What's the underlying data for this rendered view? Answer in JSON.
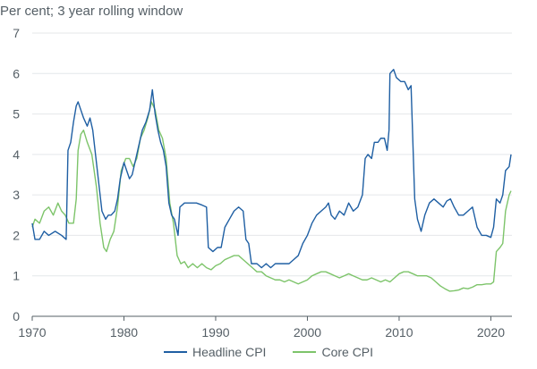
{
  "chart_data": {
    "type": "line",
    "ylabel": "Per cent; 3 year rolling window",
    "ylim": [
      0,
      7
    ],
    "xlim": [
      1970,
      2022.3
    ],
    "y_ticks": [
      "0",
      "1",
      "2",
      "3",
      "4",
      "5",
      "6",
      "7"
    ],
    "x_ticks": [
      "1970",
      "1980",
      "1990",
      "2000",
      "2010",
      "2020"
    ],
    "grid": true,
    "legend_position": "bottom",
    "series": [
      {
        "name": "Headline CPI",
        "color": "#1f5fa3",
        "points": [
          [
            1970.0,
            2.3
          ],
          [
            1970.3,
            1.9
          ],
          [
            1970.8,
            1.9
          ],
          [
            1971.3,
            2.1
          ],
          [
            1971.8,
            2.0
          ],
          [
            1972.5,
            2.1
          ],
          [
            1973.2,
            2.0
          ],
          [
            1973.7,
            1.9
          ],
          [
            1973.9,
            4.1
          ],
          [
            1974.2,
            4.3
          ],
          [
            1974.5,
            4.8
          ],
          [
            1974.8,
            5.2
          ],
          [
            1975.0,
            5.3
          ],
          [
            1975.3,
            5.1
          ],
          [
            1975.6,
            4.9
          ],
          [
            1976.0,
            4.7
          ],
          [
            1976.3,
            4.9
          ],
          [
            1976.6,
            4.6
          ],
          [
            1977.0,
            3.8
          ],
          [
            1977.3,
            3.2
          ],
          [
            1977.6,
            2.6
          ],
          [
            1978.0,
            2.4
          ],
          [
            1978.3,
            2.5
          ],
          [
            1978.6,
            2.5
          ],
          [
            1979.0,
            2.6
          ],
          [
            1979.3,
            2.9
          ],
          [
            1979.6,
            3.4
          ],
          [
            1980.0,
            3.8
          ],
          [
            1980.3,
            3.6
          ],
          [
            1980.6,
            3.4
          ],
          [
            1980.9,
            3.5
          ],
          [
            1981.2,
            3.8
          ],
          [
            1981.6,
            4.2
          ],
          [
            1982.0,
            4.6
          ],
          [
            1982.4,
            4.8
          ],
          [
            1982.8,
            5.1
          ],
          [
            1983.1,
            5.6
          ],
          [
            1983.4,
            5.0
          ],
          [
            1983.7,
            4.6
          ],
          [
            1984.0,
            4.3
          ],
          [
            1984.3,
            4.1
          ],
          [
            1984.6,
            3.7
          ],
          [
            1984.9,
            2.8
          ],
          [
            1985.2,
            2.5
          ],
          [
            1985.5,
            2.4
          ],
          [
            1985.9,
            2.0
          ],
          [
            1986.1,
            2.7
          ],
          [
            1986.6,
            2.8
          ],
          [
            1987.3,
            2.8
          ],
          [
            1987.9,
            2.8
          ],
          [
            1988.5,
            2.75
          ],
          [
            1989.0,
            2.7
          ],
          [
            1989.2,
            1.7
          ],
          [
            1989.7,
            1.6
          ],
          [
            1990.2,
            1.7
          ],
          [
            1990.6,
            1.7
          ],
          [
            1991.0,
            2.2
          ],
          [
            1991.5,
            2.4
          ],
          [
            1992.0,
            2.6
          ],
          [
            1992.5,
            2.7
          ],
          [
            1993.0,
            2.6
          ],
          [
            1993.3,
            1.9
          ],
          [
            1993.6,
            1.8
          ],
          [
            1993.9,
            1.3
          ],
          [
            1994.5,
            1.3
          ],
          [
            1995.0,
            1.2
          ],
          [
            1995.5,
            1.3
          ],
          [
            1996.0,
            1.2
          ],
          [
            1996.5,
            1.3
          ],
          [
            1997.0,
            1.3
          ],
          [
            1997.5,
            1.3
          ],
          [
            1998.0,
            1.3
          ],
          [
            1998.5,
            1.4
          ],
          [
            1999.0,
            1.5
          ],
          [
            1999.5,
            1.8
          ],
          [
            2000.0,
            2.0
          ],
          [
            2000.5,
            2.3
          ],
          [
            2001.0,
            2.5
          ],
          [
            2001.5,
            2.6
          ],
          [
            2002.0,
            2.7
          ],
          [
            2002.3,
            2.8
          ],
          [
            2002.6,
            2.5
          ],
          [
            2003.0,
            2.4
          ],
          [
            2003.5,
            2.6
          ],
          [
            2004.0,
            2.5
          ],
          [
            2004.5,
            2.8
          ],
          [
            2005.0,
            2.6
          ],
          [
            2005.5,
            2.7
          ],
          [
            2006.0,
            3.0
          ],
          [
            2006.3,
            3.9
          ],
          [
            2006.6,
            4.0
          ],
          [
            2007.0,
            3.9
          ],
          [
            2007.3,
            4.3
          ],
          [
            2007.7,
            4.3
          ],
          [
            2008.0,
            4.4
          ],
          [
            2008.4,
            4.4
          ],
          [
            2008.7,
            4.1
          ],
          [
            2008.9,
            4.6
          ],
          [
            2009.0,
            6.0
          ],
          [
            2009.4,
            6.1
          ],
          [
            2009.7,
            5.9
          ],
          [
            2010.2,
            5.8
          ],
          [
            2010.6,
            5.8
          ],
          [
            2011.0,
            5.6
          ],
          [
            2011.3,
            5.7
          ],
          [
            2011.7,
            2.9
          ],
          [
            2012.0,
            2.4
          ],
          [
            2012.4,
            2.1
          ],
          [
            2012.8,
            2.5
          ],
          [
            2013.3,
            2.8
          ],
          [
            2013.8,
            2.9
          ],
          [
            2014.3,
            2.8
          ],
          [
            2014.8,
            2.7
          ],
          [
            2015.2,
            2.85
          ],
          [
            2015.6,
            2.9
          ],
          [
            2016.0,
            2.7
          ],
          [
            2016.5,
            2.5
          ],
          [
            2017.0,
            2.5
          ],
          [
            2017.5,
            2.6
          ],
          [
            2018.0,
            2.7
          ],
          [
            2018.5,
            2.2
          ],
          [
            2019.0,
            2.0
          ],
          [
            2019.5,
            2.0
          ],
          [
            2020.0,
            1.95
          ],
          [
            2020.3,
            2.2
          ],
          [
            2020.6,
            2.9
          ],
          [
            2021.0,
            2.8
          ],
          [
            2021.3,
            3.0
          ],
          [
            2021.6,
            3.6
          ],
          [
            2022.0,
            3.7
          ],
          [
            2022.2,
            4.0
          ]
        ]
      },
      {
        "name": "Core CPI",
        "color": "#7dc46a",
        "points": [
          [
            1970.0,
            2.2
          ],
          [
            1970.3,
            2.4
          ],
          [
            1970.8,
            2.3
          ],
          [
            1971.3,
            2.6
          ],
          [
            1971.8,
            2.7
          ],
          [
            1972.3,
            2.5
          ],
          [
            1972.8,
            2.8
          ],
          [
            1973.2,
            2.6
          ],
          [
            1973.6,
            2.5
          ],
          [
            1974.0,
            2.3
          ],
          [
            1974.5,
            2.3
          ],
          [
            1974.8,
            2.9
          ],
          [
            1975.0,
            4.1
          ],
          [
            1975.3,
            4.5
          ],
          [
            1975.6,
            4.6
          ],
          [
            1976.0,
            4.3
          ],
          [
            1976.5,
            4.0
          ],
          [
            1977.0,
            3.2
          ],
          [
            1977.4,
            2.3
          ],
          [
            1977.8,
            1.7
          ],
          [
            1978.1,
            1.6
          ],
          [
            1978.5,
            1.9
          ],
          [
            1978.9,
            2.1
          ],
          [
            1979.3,
            2.7
          ],
          [
            1979.7,
            3.6
          ],
          [
            1980.2,
            3.9
          ],
          [
            1980.6,
            3.9
          ],
          [
            1981.0,
            3.7
          ],
          [
            1981.4,
            3.9
          ],
          [
            1981.8,
            4.4
          ],
          [
            1982.2,
            4.6
          ],
          [
            1982.6,
            4.9
          ],
          [
            1983.0,
            5.3
          ],
          [
            1983.4,
            5.1
          ],
          [
            1983.8,
            4.6
          ],
          [
            1984.2,
            4.4
          ],
          [
            1984.6,
            3.9
          ],
          [
            1985.0,
            2.8
          ],
          [
            1985.4,
            2.3
          ],
          [
            1985.8,
            1.5
          ],
          [
            1986.2,
            1.3
          ],
          [
            1986.6,
            1.35
          ],
          [
            1987.0,
            1.2
          ],
          [
            1987.5,
            1.3
          ],
          [
            1988.0,
            1.2
          ],
          [
            1988.5,
            1.3
          ],
          [
            1989.0,
            1.2
          ],
          [
            1989.5,
            1.15
          ],
          [
            1990.0,
            1.25
          ],
          [
            1990.5,
            1.3
          ],
          [
            1991.0,
            1.4
          ],
          [
            1991.5,
            1.45
          ],
          [
            1992.0,
            1.5
          ],
          [
            1992.5,
            1.5
          ],
          [
            1993.0,
            1.4
          ],
          [
            1993.5,
            1.3
          ],
          [
            1994.0,
            1.2
          ],
          [
            1994.5,
            1.1
          ],
          [
            1995.0,
            1.1
          ],
          [
            1995.5,
            1.0
          ],
          [
            1996.0,
            0.95
          ],
          [
            1996.5,
            0.9
          ],
          [
            1997.0,
            0.9
          ],
          [
            1997.5,
            0.85
          ],
          [
            1998.0,
            0.9
          ],
          [
            1998.5,
            0.85
          ],
          [
            1999.0,
            0.8
          ],
          [
            1999.5,
            0.85
          ],
          [
            2000.0,
            0.9
          ],
          [
            2000.5,
            1.0
          ],
          [
            2001.0,
            1.05
          ],
          [
            2001.5,
            1.1
          ],
          [
            2002.0,
            1.1
          ],
          [
            2002.5,
            1.05
          ],
          [
            2003.0,
            1.0
          ],
          [
            2003.5,
            0.95
          ],
          [
            2004.0,
            1.0
          ],
          [
            2004.5,
            1.05
          ],
          [
            2005.0,
            1.0
          ],
          [
            2005.5,
            0.95
          ],
          [
            2006.0,
            0.9
          ],
          [
            2006.5,
            0.9
          ],
          [
            2007.0,
            0.95
          ],
          [
            2007.5,
            0.9
          ],
          [
            2008.0,
            0.85
          ],
          [
            2008.5,
            0.9
          ],
          [
            2009.0,
            0.85
          ],
          [
            2009.5,
            0.95
          ],
          [
            2010.0,
            1.05
          ],
          [
            2010.5,
            1.1
          ],
          [
            2011.0,
            1.1
          ],
          [
            2011.5,
            1.05
          ],
          [
            2012.0,
            1.0
          ],
          [
            2012.5,
            1.0
          ],
          [
            2013.0,
            1.0
          ],
          [
            2013.5,
            0.95
          ],
          [
            2014.0,
            0.85
          ],
          [
            2014.5,
            0.75
          ],
          [
            2015.0,
            0.68
          ],
          [
            2015.5,
            0.62
          ],
          [
            2016.0,
            0.63
          ],
          [
            2016.5,
            0.65
          ],
          [
            2017.0,
            0.7
          ],
          [
            2017.5,
            0.68
          ],
          [
            2018.0,
            0.72
          ],
          [
            2018.5,
            0.78
          ],
          [
            2019.0,
            0.78
          ],
          [
            2019.5,
            0.8
          ],
          [
            2020.0,
            0.8
          ],
          [
            2020.3,
            0.85
          ],
          [
            2020.6,
            1.6
          ],
          [
            2021.0,
            1.7
          ],
          [
            2021.3,
            1.8
          ],
          [
            2021.6,
            2.6
          ],
          [
            2022.0,
            3.0
          ],
          [
            2022.2,
            3.1
          ]
        ]
      }
    ]
  }
}
